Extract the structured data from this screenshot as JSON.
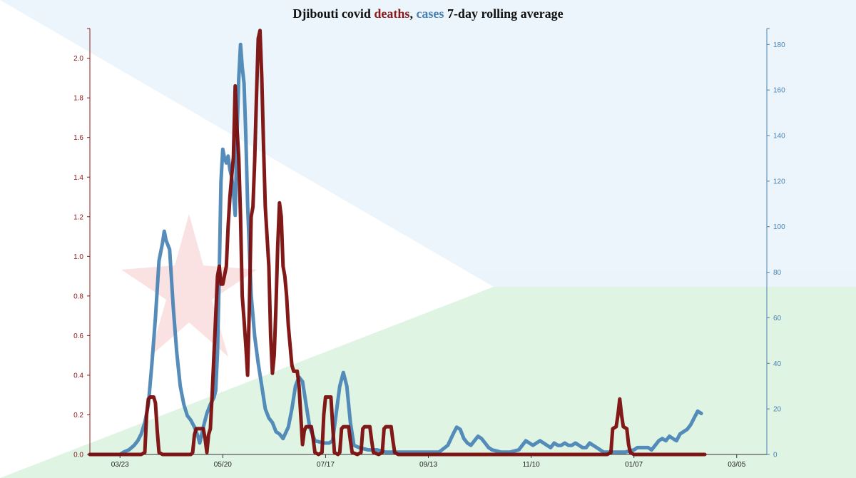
{
  "chart_data": {
    "type": "line",
    "title": {
      "prefix": "Djibouti covid ",
      "deaths_word": "deaths",
      "separator": ", ",
      "cases_word": "cases",
      "suffix": " 7-day rolling average"
    },
    "colors": {
      "deaths": "#7b0d0d",
      "cases": "#4682b4",
      "flag_blue": "#6ab2e7",
      "flag_green": "#12ad2b",
      "flag_star": "#d7141a"
    },
    "x_ticks": [
      "03/23",
      "05/20",
      "07/17",
      "09/13",
      "11/10",
      "01/07",
      "03/05"
    ],
    "x_range_days": [
      -17,
      365
    ],
    "y_left": {
      "axis": "deaths",
      "range": [
        0,
        2.15
      ],
      "ticks": [
        "0.0",
        "0.2",
        "0.4",
        "0.6",
        "0.8",
        "1.0",
        "1.2",
        "1.4",
        "1.6",
        "1.8",
        "2.0"
      ]
    },
    "y_right": {
      "axis": "cases",
      "range": [
        0,
        187
      ],
      "ticks": [
        "0",
        "20",
        "40",
        "60",
        "80",
        "100",
        "120",
        "140",
        "160",
        "180"
      ]
    },
    "series": [
      {
        "key": "cases",
        "axis": "right",
        "points": [
          [
            -17,
            0
          ],
          [
            0,
            0
          ],
          [
            2,
            1
          ],
          [
            5,
            2
          ],
          [
            8,
            4
          ],
          [
            10,
            6
          ],
          [
            12,
            9
          ],
          [
            14,
            14
          ],
          [
            16,
            22
          ],
          [
            18,
            40
          ],
          [
            20,
            60
          ],
          [
            22,
            85
          ],
          [
            24,
            93
          ],
          [
            25,
            98
          ],
          [
            26,
            94
          ],
          [
            28,
            90
          ],
          [
            30,
            65
          ],
          [
            32,
            45
          ],
          [
            34,
            30
          ],
          [
            36,
            22
          ],
          [
            38,
            17
          ],
          [
            40,
            15
          ],
          [
            42,
            12
          ],
          [
            44,
            8
          ],
          [
            45,
            5
          ],
          [
            47,
            12
          ],
          [
            49,
            18
          ],
          [
            51,
            22
          ],
          [
            53,
            25
          ],
          [
            54,
            28
          ],
          [
            55,
            45
          ],
          [
            56,
            80
          ],
          [
            57,
            120
          ],
          [
            58,
            134
          ],
          [
            59,
            130
          ],
          [
            60,
            128
          ],
          [
            61,
            131
          ],
          [
            62,
            125
          ],
          [
            63,
            122
          ],
          [
            64,
            115
          ],
          [
            65,
            105
          ],
          [
            66,
            140
          ],
          [
            67,
            165
          ],
          [
            68,
            180
          ],
          [
            69,
            170
          ],
          [
            70,
            163
          ],
          [
            71,
            140
          ],
          [
            72,
            110
          ],
          [
            74,
            70
          ],
          [
            76,
            52
          ],
          [
            78,
            40
          ],
          [
            80,
            30
          ],
          [
            82,
            20
          ],
          [
            84,
            16
          ],
          [
            86,
            14
          ],
          [
            88,
            10
          ],
          [
            90,
            9
          ],
          [
            92,
            7
          ],
          [
            95,
            12
          ],
          [
            97,
            20
          ],
          [
            99,
            30
          ],
          [
            101,
            34
          ],
          [
            103,
            32
          ],
          [
            105,
            22
          ],
          [
            107,
            12
          ],
          [
            110,
            6
          ],
          [
            115,
            5
          ],
          [
            118,
            5
          ],
          [
            120,
            6
          ],
          [
            122,
            18
          ],
          [
            124,
            30
          ],
          [
            126,
            36
          ],
          [
            128,
            30
          ],
          [
            130,
            14
          ],
          [
            132,
            4
          ],
          [
            135,
            3
          ],
          [
            140,
            2
          ],
          [
            145,
            2
          ],
          [
            150,
            1
          ],
          [
            155,
            1
          ],
          [
            160,
            1
          ],
          [
            165,
            1
          ],
          [
            170,
            1
          ],
          [
            175,
            1
          ],
          [
            180,
            1
          ],
          [
            185,
            4
          ],
          [
            188,
            9
          ],
          [
            190,
            12
          ],
          [
            192,
            11
          ],
          [
            194,
            7
          ],
          [
            196,
            5
          ],
          [
            198,
            4
          ],
          [
            200,
            6
          ],
          [
            202,
            8
          ],
          [
            204,
            7
          ],
          [
            206,
            5
          ],
          [
            208,
            3
          ],
          [
            210,
            2
          ],
          [
            215,
            1
          ],
          [
            220,
            1
          ],
          [
            225,
            2
          ],
          [
            227,
            4
          ],
          [
            229,
            6
          ],
          [
            231,
            5
          ],
          [
            233,
            4
          ],
          [
            235,
            5
          ],
          [
            237,
            6
          ],
          [
            239,
            5
          ],
          [
            241,
            4
          ],
          [
            243,
            3
          ],
          [
            245,
            5
          ],
          [
            247,
            4
          ],
          [
            249,
            4
          ],
          [
            251,
            5
          ],
          [
            253,
            4
          ],
          [
            255,
            4
          ],
          [
            257,
            5
          ],
          [
            259,
            4
          ],
          [
            261,
            3
          ],
          [
            263,
            3
          ],
          [
            265,
            5
          ],
          [
            267,
            4
          ],
          [
            269,
            3
          ],
          [
            271,
            2
          ],
          [
            273,
            1
          ],
          [
            275,
            1
          ],
          [
            280,
            1
          ],
          [
            285,
            1
          ],
          [
            290,
            2
          ],
          [
            292,
            3
          ],
          [
            295,
            3
          ],
          [
            298,
            3
          ],
          [
            300,
            2
          ],
          [
            302,
            4
          ],
          [
            304,
            6
          ],
          [
            306,
            7
          ],
          [
            308,
            6
          ],
          [
            310,
            8
          ],
          [
            312,
            7
          ],
          [
            314,
            6
          ],
          [
            316,
            9
          ],
          [
            318,
            10
          ],
          [
            320,
            11
          ],
          [
            322,
            13
          ],
          [
            324,
            16
          ],
          [
            326,
            19
          ],
          [
            328,
            18
          ]
        ]
      },
      {
        "key": "deaths",
        "axis": "left",
        "points": [
          [
            -17,
            0
          ],
          [
            0,
            0
          ],
          [
            12,
            0
          ],
          [
            14,
            0.01
          ],
          [
            15,
            0.2
          ],
          [
            16,
            0.28
          ],
          [
            17,
            0.29
          ],
          [
            19,
            0.29
          ],
          [
            20,
            0.26
          ],
          [
            21,
            0.12
          ],
          [
            22,
            0.01
          ],
          [
            24,
            0
          ],
          [
            40,
            0
          ],
          [
            41,
            0.01
          ],
          [
            42,
            0.1
          ],
          [
            43,
            0.13
          ],
          [
            47,
            0.13
          ],
          [
            48,
            0.08
          ],
          [
            49,
            0.01
          ],
          [
            50,
            0.1
          ],
          [
            51,
            0.13
          ],
          [
            52,
            0.3
          ],
          [
            53,
            0.5
          ],
          [
            54,
            0.7
          ],
          [
            55,
            0.9
          ],
          [
            56,
            0.95
          ],
          [
            57,
            0.86
          ],
          [
            58,
            0.86
          ],
          [
            60,
            0.95
          ],
          [
            61,
            1.15
          ],
          [
            62,
            1.3
          ],
          [
            63,
            1.4
          ],
          [
            64,
            1.5
          ],
          [
            65,
            1.86
          ],
          [
            66,
            1.65
          ],
          [
            67,
            1.5
          ],
          [
            68,
            1.2
          ],
          [
            69,
            0.8
          ],
          [
            70,
            0.68
          ],
          [
            71,
            0.55
          ],
          [
            72,
            0.4
          ],
          [
            73,
            0.75
          ],
          [
            74,
            1.2
          ],
          [
            75,
            1.25
          ],
          [
            76,
            1.48
          ],
          [
            77,
            1.8
          ],
          [
            78,
            2.1
          ],
          [
            79,
            2.14
          ],
          [
            80,
            1.9
          ],
          [
            81,
            1.55
          ],
          [
            82,
            1.25
          ],
          [
            83,
            1.1
          ],
          [
            84,
            0.95
          ],
          [
            85,
            0.6
          ],
          [
            86,
            0.41
          ],
          [
            87,
            0.5
          ],
          [
            88,
            0.75
          ],
          [
            89,
            1.05
          ],
          [
            90,
            1.27
          ],
          [
            91,
            1.2
          ],
          [
            92,
            0.95
          ],
          [
            93,
            0.9
          ],
          [
            94,
            0.8
          ],
          [
            95,
            0.65
          ],
          [
            96,
            0.55
          ],
          [
            97,
            0.45
          ],
          [
            98,
            0.42
          ],
          [
            100,
            0.42
          ],
          [
            101,
            0.35
          ],
          [
            102,
            0.2
          ],
          [
            103,
            0.05
          ],
          [
            104,
            0.12
          ],
          [
            105,
            0.14
          ],
          [
            108,
            0.14
          ],
          [
            109,
            0.08
          ],
          [
            110,
            0.01
          ],
          [
            112,
            0
          ],
          [
            114,
            0.01
          ],
          [
            115,
            0.2
          ],
          [
            116,
            0.29
          ],
          [
            119,
            0.29
          ],
          [
            120,
            0.15
          ],
          [
            121,
            0.01
          ],
          [
            123,
            0
          ],
          [
            124,
            0.01
          ],
          [
            125,
            0.13
          ],
          [
            126,
            0.14
          ],
          [
            129,
            0.14
          ],
          [
            130,
            0.07
          ],
          [
            131,
            0.01
          ],
          [
            134,
            0
          ],
          [
            136,
            0.01
          ],
          [
            137,
            0.13
          ],
          [
            138,
            0.14
          ],
          [
            141,
            0.14
          ],
          [
            142,
            0.07
          ],
          [
            143,
            0.01
          ],
          [
            146,
            0
          ],
          [
            148,
            0.01
          ],
          [
            149,
            0.13
          ],
          [
            150,
            0.14
          ],
          [
            153,
            0.14
          ],
          [
            154,
            0.07
          ],
          [
            155,
            0.01
          ],
          [
            157,
            0
          ],
          [
            275,
            0
          ],
          [
            277,
            0.01
          ],
          [
            278,
            0.13
          ],
          [
            280,
            0.14
          ],
          [
            281,
            0.2
          ],
          [
            282,
            0.28
          ],
          [
            283,
            0.2
          ],
          [
            284,
            0.14
          ],
          [
            286,
            0.13
          ],
          [
            287,
            0.05
          ],
          [
            288,
            0.01
          ],
          [
            290,
            0
          ],
          [
            330,
            0
          ]
        ]
      }
    ]
  }
}
